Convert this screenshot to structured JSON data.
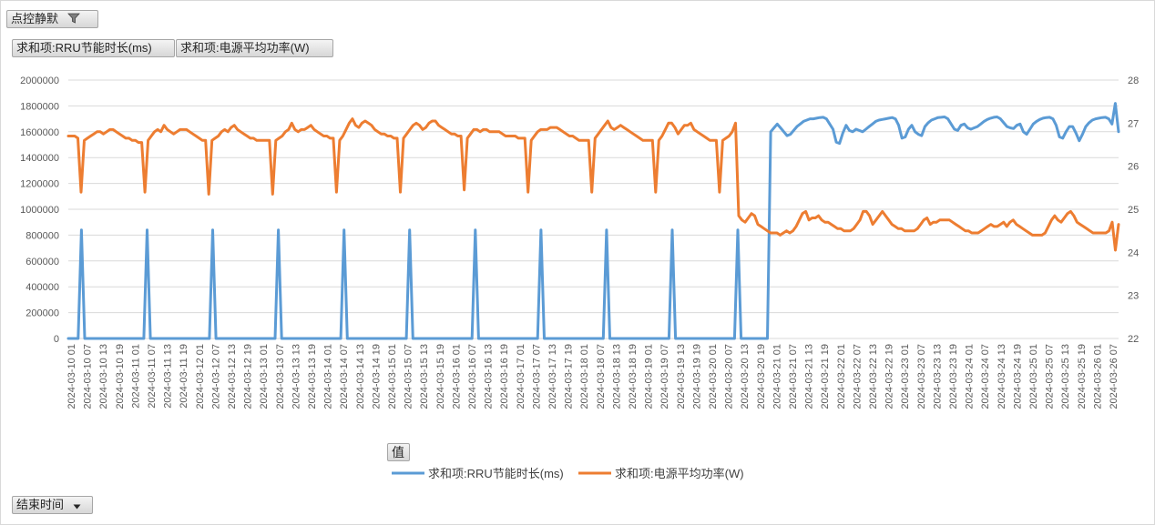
{
  "controls": {
    "filter_field": "点控静默",
    "value_fields": [
      "求和项:RRU节能时长(ms)",
      "求和项:电源平均功率(W)"
    ],
    "values_label": "值",
    "axis_field": "结束时间"
  },
  "icons": {
    "filter": "funnel-filter-icon",
    "dropdown": "dropdown-arrow-icon"
  },
  "colors": {
    "series1": "#5b9bd5",
    "series2": "#ed7d31",
    "grid": "#d9d9d9"
  },
  "chart_data": {
    "type": "line",
    "title": "",
    "x_label_dates": [
      "2024-03-10",
      "2024-03-11",
      "2024-03-12",
      "2024-03-13",
      "2024-03-14",
      "2024-03-15",
      "2024-03-16",
      "2024-03-17",
      "2024-03-18",
      "2024-03-19",
      "2024-03-20",
      "2024-03-21",
      "2024-03-22",
      "2024-03-23",
      "2024-03-24",
      "2024-03-25",
      "2024-03-26"
    ],
    "x_label_hours": [
      "01",
      "07",
      "13",
      "19"
    ],
    "x_label_last_hour": "07",
    "y_left": {
      "min": 0,
      "max": 2000000,
      "step": 200000,
      "ticks": [
        "0",
        "200000",
        "400000",
        "600000",
        "800000",
        "1000000",
        "1200000",
        "1400000",
        "1600000",
        "1800000",
        "2000000"
      ]
    },
    "y_right": {
      "min": 22,
      "max": 28,
      "step": 1,
      "ticks": [
        "22",
        "23",
        "24",
        "25",
        "26",
        "27",
        "28"
      ]
    },
    "legend_position": "bottom",
    "series": [
      {
        "name": "求和项:RRU节能时长(ms)",
        "axis": "left",
        "color": "#5b9bd5",
        "values": [
          0,
          0,
          0,
          0,
          840000,
          0,
          0,
          0,
          0,
          0,
          0,
          0,
          0,
          0,
          0,
          0,
          0,
          0,
          0,
          0,
          0,
          0,
          0,
          0,
          840000,
          0,
          0,
          0,
          0,
          0,
          0,
          0,
          0,
          0,
          0,
          0,
          0,
          0,
          0,
          0,
          0,
          0,
          0,
          0,
          840000,
          0,
          0,
          0,
          0,
          0,
          0,
          0,
          0,
          0,
          0,
          0,
          0,
          0,
          0,
          0,
          0,
          0,
          0,
          0,
          840000,
          0,
          0,
          0,
          0,
          0,
          0,
          0,
          0,
          0,
          0,
          0,
          0,
          0,
          0,
          0,
          0,
          0,
          0,
          0,
          840000,
          0,
          0,
          0,
          0,
          0,
          0,
          0,
          0,
          0,
          0,
          0,
          0,
          0,
          0,
          0,
          0,
          0,
          0,
          0,
          840000,
          0,
          0,
          0,
          0,
          0,
          0,
          0,
          0,
          0,
          0,
          0,
          0,
          0,
          0,
          0,
          0,
          0,
          0,
          0,
          840000,
          0,
          0,
          0,
          0,
          0,
          0,
          0,
          0,
          0,
          0,
          0,
          0,
          0,
          0,
          0,
          0,
          0,
          0,
          0,
          840000,
          0,
          0,
          0,
          0,
          0,
          0,
          0,
          0,
          0,
          0,
          0,
          0,
          0,
          0,
          0,
          0,
          0,
          0,
          0,
          840000,
          0,
          0,
          0,
          0,
          0,
          0,
          0,
          0,
          0,
          0,
          0,
          0,
          0,
          0,
          0,
          0,
          0,
          0,
          0,
          840000,
          0,
          0,
          0,
          0,
          0,
          0,
          0,
          0,
          0,
          0,
          0,
          0,
          0,
          0,
          0,
          0,
          0,
          0,
          0,
          840000,
          0,
          0,
          0,
          0,
          0,
          0,
          0,
          0,
          0,
          1600000,
          1630000,
          1660000,
          1630000,
          1600000,
          1570000,
          1580000,
          1610000,
          1640000,
          1660000,
          1680000,
          1690000,
          1700000,
          1700000,
          1705000,
          1710000,
          1712000,
          1700000,
          1660000,
          1620000,
          1520000,
          1510000,
          1590000,
          1650000,
          1610000,
          1600000,
          1620000,
          1610000,
          1600000,
          1620000,
          1640000,
          1660000,
          1680000,
          1690000,
          1695000,
          1700000,
          1705000,
          1710000,
          1700000,
          1650000,
          1550000,
          1560000,
          1620000,
          1650000,
          1600000,
          1580000,
          1570000,
          1640000,
          1670000,
          1690000,
          1700000,
          1710000,
          1712000,
          1715000,
          1700000,
          1660000,
          1620000,
          1610000,
          1650000,
          1660000,
          1630000,
          1620000,
          1630000,
          1640000,
          1660000,
          1680000,
          1695000,
          1705000,
          1712000,
          1715000,
          1700000,
          1670000,
          1640000,
          1630000,
          1625000,
          1650000,
          1660000,
          1600000,
          1580000,
          1620000,
          1660000,
          1680000,
          1695000,
          1705000,
          1710000,
          1712000,
          1700000,
          1650000,
          1560000,
          1550000,
          1600000,
          1640000,
          1640000,
          1590000,
          1530000,
          1580000,
          1640000,
          1670000,
          1690000,
          1700000,
          1705000,
          1710000,
          1712000,
          1700000,
          1660000,
          1820000,
          1600000
        ]
      },
      {
        "name": "求和项:电源平均功率(W)",
        "axis": "right",
        "color": "#ed7d31",
        "values": [
          26.7,
          26.7,
          26.7,
          26.65,
          25.4,
          26.6,
          26.65,
          26.7,
          26.75,
          26.8,
          26.8,
          26.75,
          26.8,
          26.85,
          26.85,
          26.8,
          26.75,
          26.7,
          26.65,
          26.65,
          26.6,
          26.6,
          26.55,
          26.55,
          25.4,
          26.6,
          26.7,
          26.8,
          26.85,
          26.8,
          26.95,
          26.85,
          26.8,
          26.75,
          26.8,
          26.85,
          26.85,
          26.85,
          26.8,
          26.75,
          26.7,
          26.65,
          26.6,
          26.6,
          25.35,
          26.6,
          26.65,
          26.7,
          26.8,
          26.85,
          26.8,
          26.9,
          26.95,
          26.85,
          26.8,
          26.75,
          26.7,
          26.65,
          26.65,
          26.6,
          26.6,
          26.6,
          26.6,
          26.6,
          25.35,
          26.6,
          26.65,
          26.7,
          26.8,
          26.85,
          27.0,
          26.85,
          26.8,
          26.85,
          26.85,
          26.9,
          26.95,
          26.85,
          26.8,
          26.75,
          26.7,
          26.7,
          26.65,
          26.65,
          25.4,
          26.6,
          26.7,
          26.85,
          27.0,
          27.1,
          26.95,
          26.9,
          27.0,
          27.05,
          27.0,
          26.95,
          26.85,
          26.8,
          26.75,
          26.75,
          26.7,
          26.7,
          26.65,
          26.65,
          25.4,
          26.65,
          26.75,
          26.85,
          26.95,
          27.0,
          26.95,
          26.85,
          26.9,
          27.0,
          27.05,
          27.05,
          26.95,
          26.9,
          26.85,
          26.8,
          26.75,
          26.75,
          26.7,
          26.7,
          25.45,
          26.65,
          26.75,
          26.85,
          26.85,
          26.8,
          26.85,
          26.85,
          26.8,
          26.8,
          26.8,
          26.8,
          26.75,
          26.7,
          26.7,
          26.7,
          26.7,
          26.65,
          26.65,
          26.65,
          25.4,
          26.6,
          26.7,
          26.8,
          26.85,
          26.85,
          26.85,
          26.9,
          26.9,
          26.9,
          26.85,
          26.8,
          26.75,
          26.7,
          26.7,
          26.65,
          26.6,
          26.6,
          26.6,
          26.6,
          25.4,
          26.65,
          26.75,
          26.85,
          26.95,
          27.05,
          26.9,
          26.85,
          26.9,
          26.95,
          26.9,
          26.85,
          26.8,
          26.75,
          26.7,
          26.65,
          26.6,
          26.6,
          26.6,
          26.6,
          25.4,
          26.6,
          26.7,
          26.85,
          27.0,
          27.0,
          26.9,
          26.75,
          26.85,
          26.95,
          26.95,
          27.0,
          26.85,
          26.8,
          26.75,
          26.7,
          26.65,
          26.6,
          26.6,
          26.6,
          25.4,
          26.6,
          26.65,
          26.7,
          26.8,
          27.0,
          24.85,
          24.75,
          24.7,
          24.8,
          24.9,
          24.85,
          24.65,
          24.6,
          24.55,
          24.5,
          24.45,
          24.45,
          24.45,
          24.4,
          24.45,
          24.5,
          24.45,
          24.5,
          24.6,
          24.75,
          24.9,
          24.95,
          24.75,
          24.8,
          24.8,
          24.85,
          24.75,
          24.7,
          24.7,
          24.65,
          24.6,
          24.55,
          24.55,
          24.5,
          24.5,
          24.5,
          24.55,
          24.65,
          24.75,
          24.95,
          24.95,
          24.85,
          24.65,
          24.75,
          24.85,
          24.95,
          24.85,
          24.75,
          24.65,
          24.6,
          24.55,
          24.55,
          24.5,
          24.5,
          24.5,
          24.5,
          24.55,
          24.65,
          24.75,
          24.8,
          24.65,
          24.7,
          24.7,
          24.75,
          24.75,
          24.75,
          24.75,
          24.7,
          24.65,
          24.6,
          24.55,
          24.5,
          24.5,
          24.45,
          24.45,
          24.45,
          24.5,
          24.55,
          24.6,
          24.65,
          24.6,
          24.6,
          24.65,
          24.7,
          24.6,
          24.7,
          24.75,
          24.65,
          24.6,
          24.55,
          24.5,
          24.45,
          24.4,
          24.4,
          24.4,
          24.4,
          24.45,
          24.6,
          24.75,
          24.85,
          24.75,
          24.7,
          24.8,
          24.9,
          24.95,
          24.85,
          24.7,
          24.65,
          24.6,
          24.55,
          24.5,
          24.45,
          24.45,
          24.45,
          24.45,
          24.45,
          24.5,
          24.7,
          24.05,
          24.65
        ]
      }
    ]
  }
}
